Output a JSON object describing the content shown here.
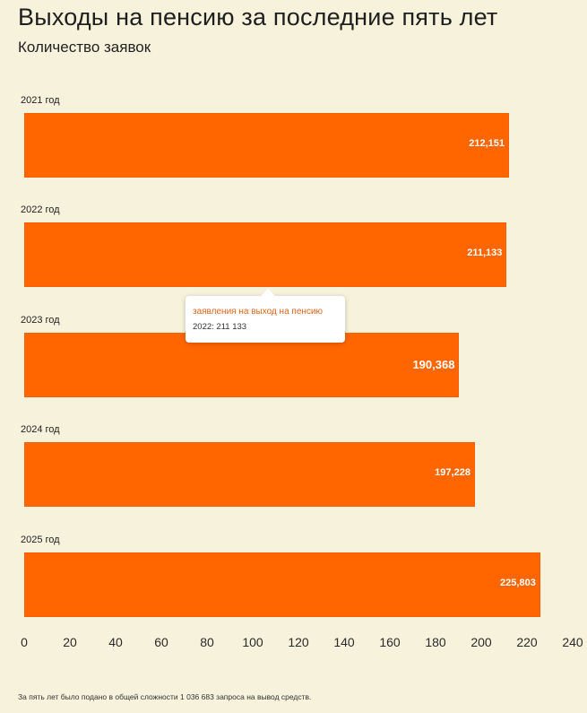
{
  "title": "Выходы на пенсию за последние пять лет",
  "subtitle": "Количество заявок",
  "tooltip": {
    "series": "заявления на выход на пенсию",
    "value_text": "2022: 211 133"
  },
  "footnote": "За пять лет было подано в общей сложности 1 036 683 запроса на вывод средств.",
  "chart_data": {
    "type": "bar",
    "orientation": "horizontal",
    "categories": [
      "2021 год",
      "2022 год",
      "2023 год",
      "2024 год",
      "2025 год"
    ],
    "values": [
      212.151,
      211.133,
      190.368,
      197.228,
      225.803
    ],
    "value_labels": [
      "212,151",
      "211,133",
      "190,368",
      "197,228",
      "225,803"
    ],
    "x_ticks": [
      "0",
      "20",
      "40",
      "60",
      "80",
      "100",
      "120",
      "140",
      "160",
      "180",
      "200",
      "220",
      "240"
    ],
    "xlim": [
      0,
      240
    ],
    "bar_color": "#ff6600",
    "grid": false,
    "legend": "none"
  }
}
